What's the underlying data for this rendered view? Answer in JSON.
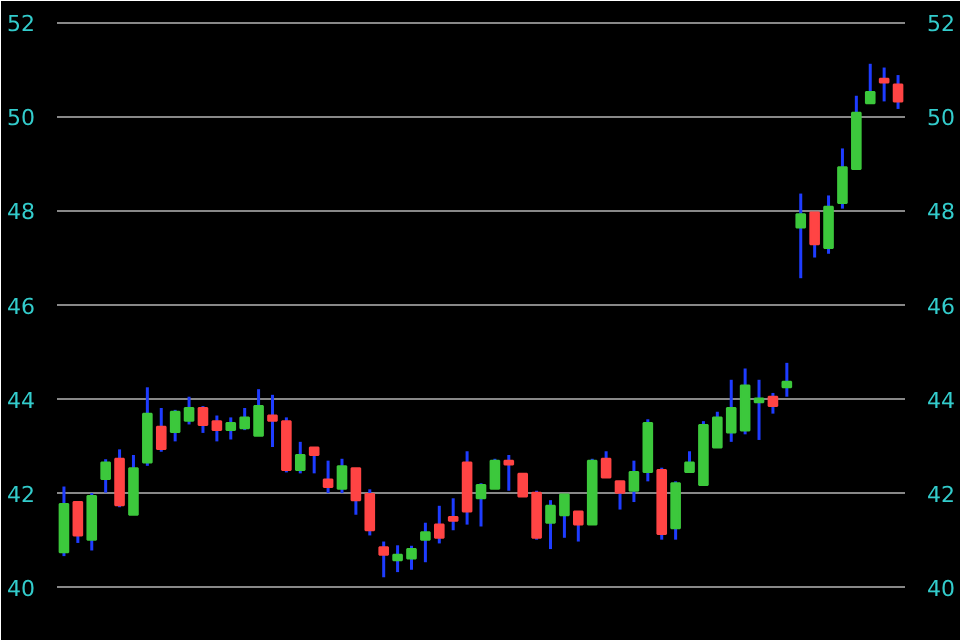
{
  "chart_data": {
    "type": "candlestick",
    "categories": [
      null,
      null,
      null,
      null,
      null,
      null,
      null,
      null,
      null,
      null,
      null,
      null,
      null,
      null,
      null,
      null,
      null,
      null,
      null,
      null,
      null,
      null,
      null,
      null,
      null,
      null,
      null,
      null,
      null,
      null,
      null,
      null,
      null,
      null,
      null,
      null,
      null,
      null,
      null,
      null,
      null,
      null,
      null,
      null,
      null,
      null,
      null,
      null,
      null,
      null,
      null,
      null,
      null,
      null,
      null,
      null,
      null,
      null,
      null,
      null,
      null
    ],
    "ohlc": [
      [
        40.73,
        42.13,
        40.65,
        41.76
      ],
      [
        41.8,
        41.8,
        40.93,
        41.09
      ],
      [
        41.0,
        41.99,
        40.77,
        41.93
      ],
      [
        42.29,
        42.71,
        42.0,
        42.64
      ],
      [
        42.72,
        42.92,
        41.69,
        41.73
      ],
      [
        41.53,
        42.8,
        41.53,
        42.52
      ],
      [
        42.64,
        44.24,
        42.57,
        43.68
      ],
      [
        43.4,
        43.8,
        42.87,
        42.93
      ],
      [
        43.29,
        43.76,
        43.09,
        43.72
      ],
      [
        43.53,
        44.04,
        43.45,
        43.8
      ],
      [
        43.8,
        43.84,
        43.27,
        43.44
      ],
      [
        43.52,
        43.64,
        43.09,
        43.33
      ],
      [
        43.33,
        43.6,
        43.13,
        43.48
      ],
      [
        43.37,
        43.8,
        43.33,
        43.6
      ],
      [
        43.21,
        44.2,
        43.21,
        43.84
      ],
      [
        43.64,
        44.08,
        42.97,
        43.53
      ],
      [
        43.52,
        43.6,
        42.43,
        42.48
      ],
      [
        42.48,
        43.08,
        42.41,
        42.8
      ],
      [
        42.96,
        42.96,
        42.41,
        42.8
      ],
      [
        42.28,
        42.68,
        41.99,
        42.12
      ],
      [
        42.08,
        42.72,
        41.99,
        42.56
      ],
      [
        42.52,
        42.52,
        41.53,
        41.84
      ],
      [
        41.97,
        42.07,
        41.09,
        41.2
      ],
      [
        40.84,
        40.96,
        40.2,
        40.68
      ],
      [
        40.56,
        40.88,
        40.31,
        40.68
      ],
      [
        40.6,
        40.87,
        40.36,
        40.8
      ],
      [
        41.0,
        41.36,
        40.52,
        41.16
      ],
      [
        41.32,
        41.72,
        40.92,
        41.04
      ],
      [
        41.48,
        41.88,
        41.2,
        41.4
      ],
      [
        42.64,
        42.88,
        41.32,
        41.6
      ],
      [
        41.88,
        42.2,
        41.28,
        42.16
      ],
      [
        42.08,
        42.72,
        42.08,
        42.68
      ],
      [
        42.68,
        42.8,
        42.04,
        42.6
      ],
      [
        42.4,
        42.4,
        41.92,
        41.92
      ],
      [
        42.0,
        42.04,
        41.0,
        41.04
      ],
      [
        41.36,
        41.84,
        40.8,
        41.72
      ],
      [
        41.52,
        41.96,
        41.04,
        41.96
      ],
      [
        41.6,
        41.6,
        40.96,
        41.32
      ],
      [
        41.32,
        42.72,
        41.32,
        42.68
      ],
      [
        42.72,
        42.88,
        42.32,
        42.32
      ],
      [
        42.24,
        42.24,
        41.64,
        42.0
      ],
      [
        42.04,
        42.68,
        41.8,
        42.44
      ],
      [
        42.44,
        43.56,
        42.24,
        43.48
      ],
      [
        42.48,
        42.53,
        41.0,
        41.12
      ],
      [
        41.24,
        42.24,
        41.0,
        42.2
      ],
      [
        42.44,
        42.88,
        42.44,
        42.64
      ],
      [
        42.16,
        43.52,
        42.16,
        43.44
      ],
      [
        42.96,
        43.72,
        42.96,
        43.6
      ],
      [
        43.28,
        44.4,
        43.08,
        43.8
      ],
      [
        43.32,
        44.64,
        43.24,
        44.28
      ],
      [
        43.92,
        44.4,
        43.12,
        44.0
      ],
      [
        44.04,
        44.12,
        43.68,
        43.84
      ],
      [
        44.24,
        44.76,
        44.04,
        44.36
      ],
      [
        47.64,
        48.36,
        46.56,
        47.92
      ],
      [
        47.96,
        47.96,
        47.0,
        47.28
      ],
      [
        47.2,
        48.32,
        47.08,
        48.08
      ],
      [
        48.16,
        49.32,
        48.04,
        48.92
      ],
      [
        48.88,
        50.44,
        48.88,
        50.08
      ],
      [
        50.28,
        51.12,
        50.28,
        50.52
      ],
      [
        50.8,
        51.04,
        50.32,
        50.72
      ],
      [
        50.68,
        50.88,
        50.16,
        50.32
      ]
    ],
    "colors": [
      "#3cc83c",
      "#ff4444",
      "#3cc83c",
      "#3cc83c",
      "#ff4444",
      "#3cc83c",
      "#3cc83c",
      "#ff4444",
      "#3cc83c",
      "#3cc83c",
      "#ff4444",
      "#ff4444",
      "#3cc83c",
      "#3cc83c",
      "#3cc83c",
      "#ff4444",
      "#ff4444",
      "#3cc83c",
      "#ff4444",
      "#ff4444",
      "#3cc83c",
      "#ff4444",
      "#ff4444",
      "#ff4444",
      "#3cc83c",
      "#3cc83c",
      "#3cc83c",
      "#ff4444",
      "#ff4444",
      "#ff4444",
      "#3cc83c",
      "#3cc83c",
      "#ff4444",
      "#ff4444",
      "#ff4444",
      "#3cc83c",
      "#3cc83c",
      "#ff4444",
      "#3cc83c",
      "#ff4444",
      "#ff4444",
      "#3cc83c",
      "#3cc83c",
      "#ff4444",
      "#3cc83c",
      "#3cc83c",
      "#3cc83c",
      "#3cc83c",
      "#3cc83c",
      "#3cc83c",
      "#3cc83c",
      "#ff4444",
      "#3cc83c",
      "#3cc83c",
      "#ff4444",
      "#3cc83c",
      "#3cc83c",
      "#3cc83c",
      "#3cc83c",
      "#ff4444",
      "#ff4444"
    ],
    "ylim": [
      39.1,
      52.2
    ],
    "yticks": [
      40,
      42,
      44,
      46,
      48,
      50,
      52
    ],
    "y2lim": [
      39.1,
      52.2
    ],
    "y2ticks": [
      40,
      42,
      44,
      46,
      48,
      50,
      52
    ],
    "grid": "y"
  }
}
